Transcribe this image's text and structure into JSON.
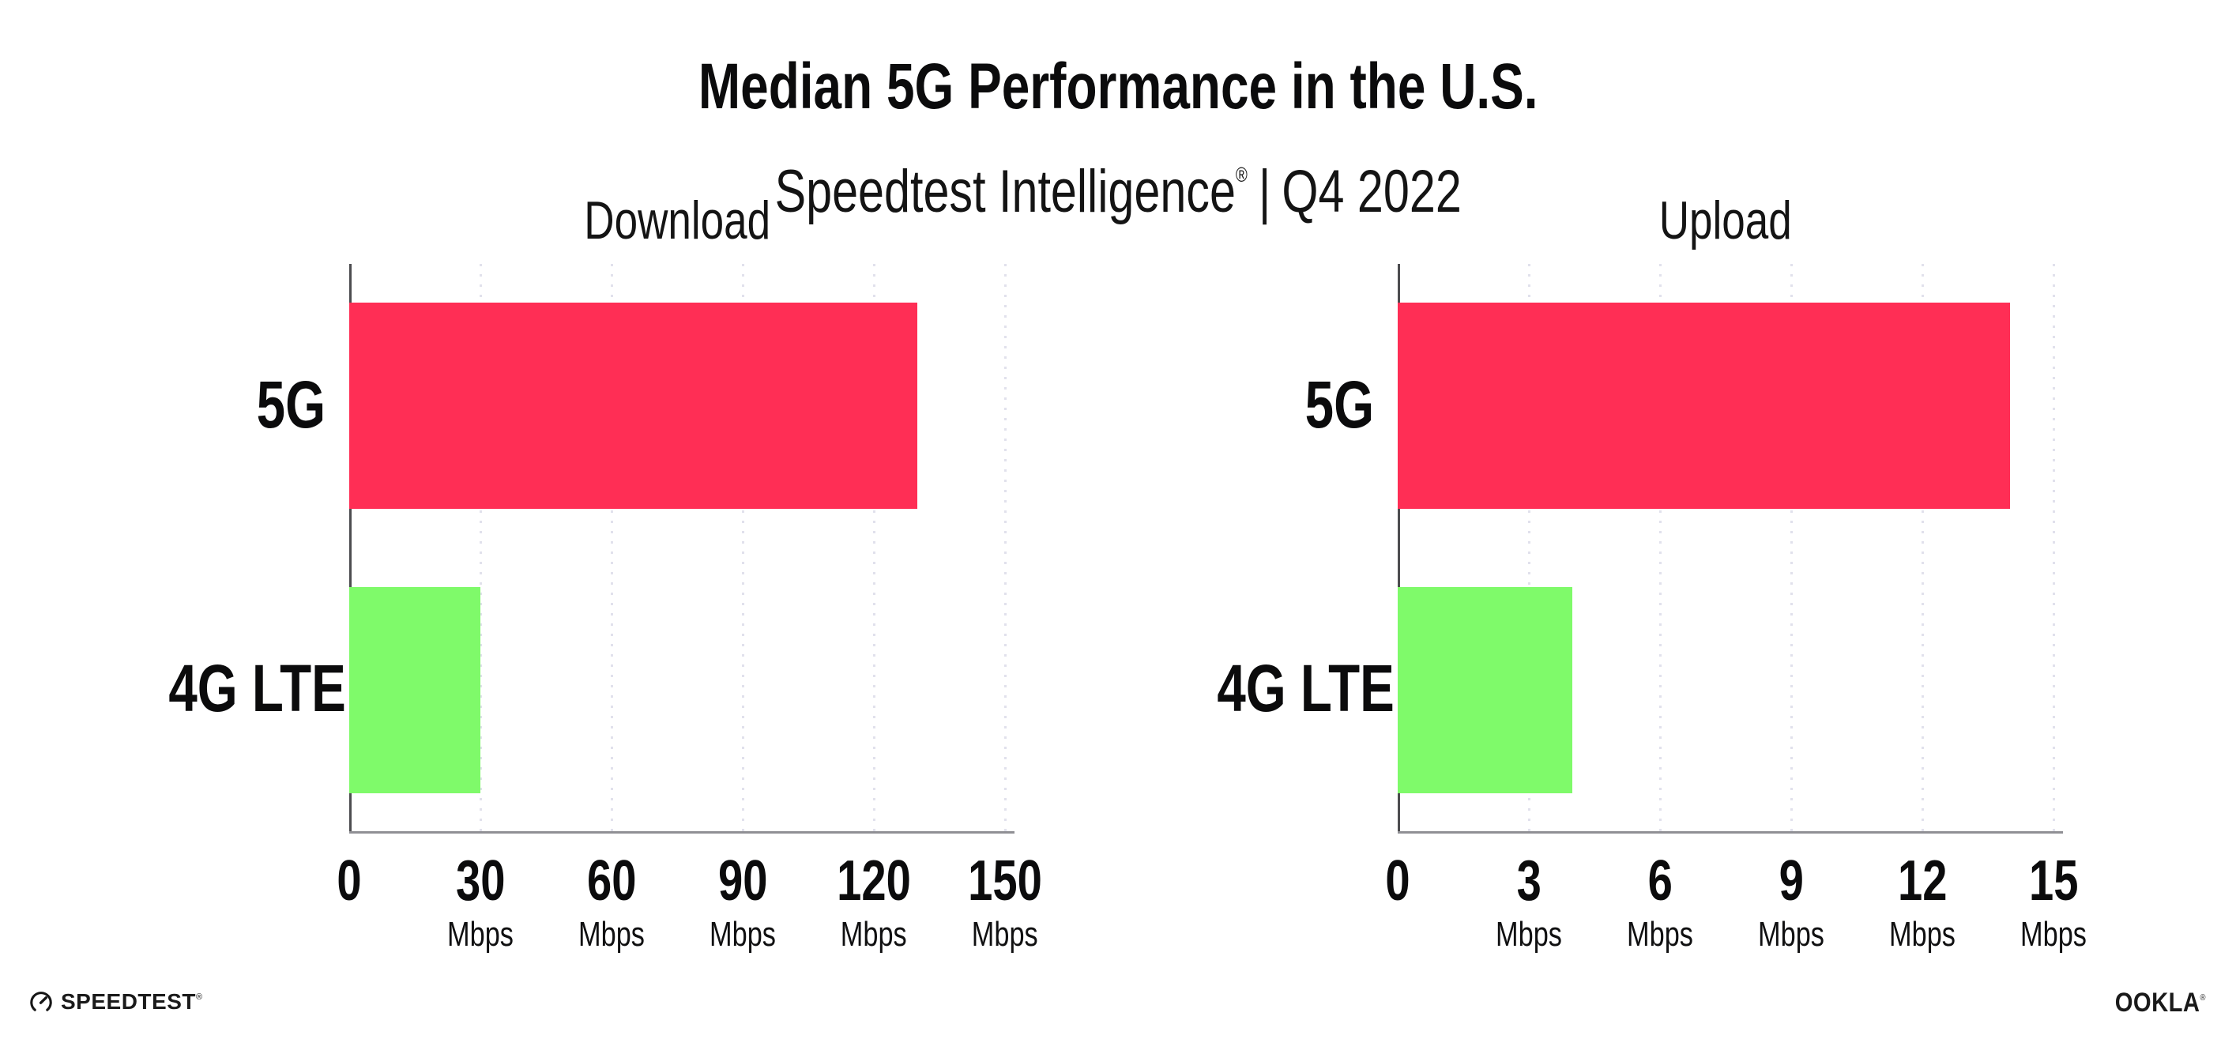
{
  "header": {
    "title": "Median 5G Performance in the U.S.",
    "subtitle_brand": "Speedtest Intelligence",
    "subtitle_reg": "®",
    "subtitle_separator": "|",
    "subtitle_period": "Q4 2022"
  },
  "chart_data": [
    {
      "type": "bar",
      "orientation": "horizontal",
      "title": "Download",
      "categories": [
        "5G",
        "4G LTE"
      ],
      "values": [
        130,
        30
      ],
      "unit": "Mbps",
      "xlim": [
        0,
        150
      ],
      "xticks": [
        0,
        30,
        60,
        90,
        120,
        150
      ],
      "xlabel": "",
      "ylabel": "",
      "grid": "vertical-dotted",
      "legend": "none",
      "bar_colors": [
        "#FF2E55",
        "#7FFA6A"
      ]
    },
    {
      "type": "bar",
      "orientation": "horizontal",
      "title": "Upload",
      "categories": [
        "5G",
        "4G LTE"
      ],
      "values": [
        14,
        4
      ],
      "unit": "Mbps",
      "xlim": [
        0,
        15
      ],
      "xticks": [
        0,
        3,
        6,
        9,
        12,
        15
      ],
      "xlabel": "",
      "ylabel": "",
      "grid": "vertical-dotted",
      "legend": "none",
      "bar_colors": [
        "#FF2E55",
        "#7FFA6A"
      ]
    }
  ],
  "footer": {
    "speedtest_label": "SPEEDTEST",
    "speedtest_reg": "®",
    "ookla_label": "OOKLA",
    "ookla_reg": "®"
  },
  "colors": {
    "bar_5g": "#FF2E55",
    "bar_4g_lte": "#7FFA6A",
    "background": "#FFFFFF",
    "text": "#0B0B0C",
    "gridline": "#E1E1EC",
    "axis_line": "#909095"
  }
}
